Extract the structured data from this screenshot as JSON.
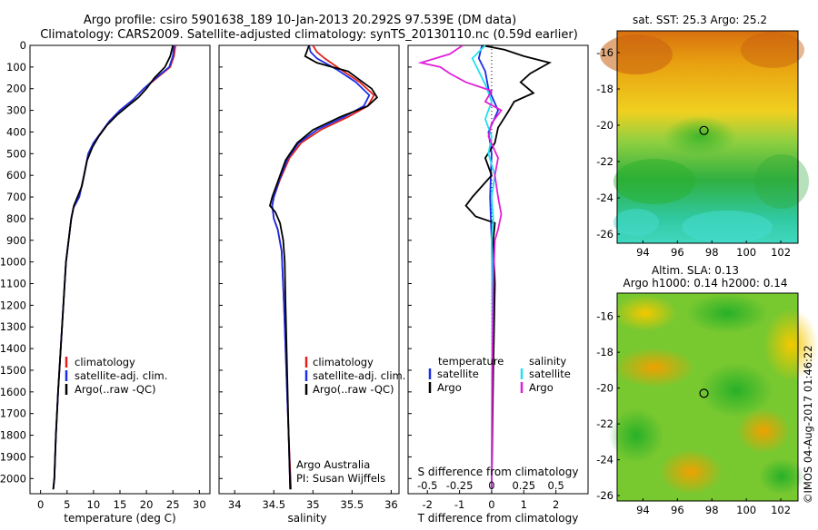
{
  "header": {
    "line1": "Argo profile: csiro 5901638_189 10-Jan-2013 20.292S 97.539E (DM data)",
    "line2": "Climatology: CARS2009. Satellite-adjusted climatology: synTS_20130110.nc (0.59d earlier)"
  },
  "side_stamp": "©IMOS 04-Aug-2017 01:46:22",
  "colors": {
    "climatology": "#e0201b",
    "satellite": "#1a2ee6",
    "argo": "#000000",
    "sat_salinity": "#22e0f0",
    "argo_salinity": "#e020d8"
  },
  "chart_data": [
    {
      "type": "line",
      "name": "temperature",
      "xlabel": "temperature (deg C)",
      "xlim": [
        -2,
        32
      ],
      "xticks": [
        0,
        5,
        10,
        15,
        20,
        25,
        30
      ],
      "ylim": [
        2070,
        0
      ],
      "yticks": [
        0,
        100,
        200,
        300,
        400,
        500,
        600,
        700,
        800,
        900,
        1000,
        1100,
        1200,
        1300,
        1400,
        1500,
        1600,
        1700,
        1800,
        1900,
        2000
      ],
      "legend": [
        "climatology",
        "satellite-adj. clim.",
        "Argo(..raw -QC)"
      ],
      "series": [
        {
          "name": "climatology",
          "color": "#e0201b",
          "points": [
            [
              25.5,
              0
            ],
            [
              25.2,
              50
            ],
            [
              24.5,
              100
            ],
            [
              22,
              150
            ],
            [
              19.5,
              200
            ],
            [
              17.5,
              250
            ],
            [
              15,
              300
            ],
            [
              13,
              350
            ],
            [
              11.5,
              400
            ],
            [
              10,
              450
            ],
            [
              9,
              500
            ],
            [
              8.2,
              600
            ],
            [
              7.3,
              700
            ],
            [
              6.2,
              750
            ],
            [
              5.8,
              800
            ],
            [
              5.3,
              900
            ],
            [
              4.8,
              1000
            ],
            [
              4.3,
              1200
            ],
            [
              3.8,
              1400
            ],
            [
              3.3,
              1600
            ],
            [
              2.9,
              1800
            ],
            [
              2.6,
              2000
            ],
            [
              2.4,
              2050
            ]
          ]
        },
        {
          "name": "satellite-adj. clim.",
          "color": "#1a2ee6",
          "points": [
            [
              25.2,
              0
            ],
            [
              25,
              50
            ],
            [
              24.3,
              100
            ],
            [
              21.8,
              150
            ],
            [
              19.5,
              200
            ],
            [
              17.5,
              250
            ],
            [
              15,
              300
            ],
            [
              13,
              350
            ],
            [
              11.5,
              400
            ],
            [
              10,
              450
            ],
            [
              9,
              500
            ],
            [
              8.2,
              600
            ],
            [
              7.3,
              700
            ],
            [
              6.2,
              750
            ],
            [
              5.8,
              800
            ],
            [
              5.3,
              900
            ],
            [
              4.8,
              1000
            ],
            [
              4.3,
              1200
            ],
            [
              3.8,
              1400
            ],
            [
              3.3,
              1600
            ],
            [
              2.9,
              1800
            ],
            [
              2.6,
              2000
            ],
            [
              2.4,
              2050
            ]
          ]
        },
        {
          "name": "Argo(..raw -QC)",
          "color": "#000000",
          "points": [
            [
              25,
              0
            ],
            [
              24.5,
              50
            ],
            [
              23.5,
              100
            ],
            [
              21.5,
              150
            ],
            [
              20,
              200
            ],
            [
              18.5,
              240
            ],
            [
              16.5,
              280
            ],
            [
              14.5,
              320
            ],
            [
              12.5,
              370
            ],
            [
              11,
              420
            ],
            [
              9.8,
              470
            ],
            [
              8.8,
              530
            ],
            [
              7.8,
              650
            ],
            [
              6.3,
              740
            ],
            [
              5.8,
              800
            ],
            [
              5.3,
              900
            ],
            [
              4.8,
              1000
            ],
            [
              4.3,
              1200
            ],
            [
              3.8,
              1400
            ],
            [
              3.3,
              1600
            ],
            [
              2.9,
              1800
            ],
            [
              2.6,
              2000
            ],
            [
              2.4,
              2050
            ]
          ]
        }
      ]
    },
    {
      "type": "line",
      "name": "salinity",
      "xlabel": "salinity",
      "xlim": [
        33.8,
        36.1
      ],
      "xticks": [
        34,
        34.5,
        35,
        35.5,
        36
      ],
      "ylim": [
        2070,
        0
      ],
      "legend": [
        "climatology",
        "satellite-adj. clim.",
        "Argo(..raw -QC)"
      ],
      "annotation": [
        "Argo Australia",
        "PI: Susan Wijffels"
      ],
      "series": [
        {
          "name": "climatology",
          "color": "#e0201b",
          "points": [
            [
              35,
              0
            ],
            [
              35.05,
              30
            ],
            [
              35.15,
              60
            ],
            [
              35.35,
              110
            ],
            [
              35.6,
              170
            ],
            [
              35.78,
              230
            ],
            [
              35.7,
              280
            ],
            [
              35.45,
              330
            ],
            [
              35.1,
              390
            ],
            [
              34.85,
              450
            ],
            [
              34.7,
              520
            ],
            [
              34.58,
              620
            ],
            [
              34.5,
              700
            ],
            [
              34.48,
              740
            ],
            [
              34.5,
              800
            ],
            [
              34.55,
              850
            ],
            [
              34.6,
              950
            ],
            [
              34.63,
              1200
            ],
            [
              34.66,
              1500
            ],
            [
              34.69,
              1800
            ],
            [
              34.72,
              2050
            ]
          ]
        },
        {
          "name": "satellite-adj. clim.",
          "color": "#1a2ee6",
          "points": [
            [
              34.95,
              0
            ],
            [
              34.97,
              30
            ],
            [
              35.05,
              60
            ],
            [
              35.3,
              110
            ],
            [
              35.55,
              170
            ],
            [
              35.72,
              230
            ],
            [
              35.65,
              280
            ],
            [
              35.4,
              330
            ],
            [
              35.05,
              390
            ],
            [
              34.82,
              450
            ],
            [
              34.68,
              520
            ],
            [
              34.57,
              620
            ],
            [
              34.5,
              700
            ],
            [
              34.48,
              740
            ],
            [
              34.5,
              800
            ],
            [
              34.55,
              850
            ],
            [
              34.6,
              950
            ],
            [
              34.63,
              1200
            ],
            [
              34.66,
              1500
            ],
            [
              34.69,
              1800
            ],
            [
              34.71,
              2050
            ]
          ]
        },
        {
          "name": "Argo(..raw -QC)",
          "color": "#000000",
          "points": [
            [
              34.95,
              0
            ],
            [
              34.9,
              50
            ],
            [
              35.05,
              80
            ],
            [
              35.2,
              95
            ],
            [
              35.45,
              120
            ],
            [
              35.6,
              160
            ],
            [
              35.75,
              200
            ],
            [
              35.82,
              240
            ],
            [
              35.7,
              280
            ],
            [
              35.35,
              330
            ],
            [
              35.0,
              390
            ],
            [
              34.8,
              450
            ],
            [
              34.65,
              530
            ],
            [
              34.55,
              630
            ],
            [
              34.48,
              700
            ],
            [
              34.45,
              740
            ],
            [
              34.52,
              770
            ],
            [
              34.58,
              820
            ],
            [
              34.62,
              900
            ],
            [
              34.64,
              1000
            ],
            [
              34.65,
              1200
            ],
            [
              34.67,
              1500
            ],
            [
              34.69,
              1800
            ],
            [
              34.71,
              2050
            ]
          ]
        }
      ]
    },
    {
      "type": "line",
      "name": "difference",
      "xlabel_top": "S difference from climatology",
      "xlabel": "T difference from climatology",
      "xlim": [
        -2.6,
        3
      ],
      "xticks_bottom": [
        -2,
        -1,
        0,
        1,
        2
      ],
      "xticks_top": [
        "-0.5",
        "-0.25",
        "0",
        "0.25",
        "0.5"
      ],
      "xticks_top_pos": [
        -2,
        -1,
        0,
        1,
        2
      ],
      "ylim": [
        2070,
        0
      ],
      "legend_temperature": {
        "title": "temperature",
        "items": [
          "satellite",
          "Argo"
        ]
      },
      "legend_salinity": {
        "title": "salinity",
        "items": [
          "satellite",
          "Argo"
        ]
      },
      "series": [
        {
          "name": "T satellite",
          "color": "#1a2ee6",
          "points": [
            [
              -0.3,
              0
            ],
            [
              -0.4,
              60
            ],
            [
              -0.2,
              120
            ],
            [
              -0.1,
              200
            ],
            [
              0.2,
              300
            ],
            [
              -0.1,
              400
            ],
            [
              0,
              500
            ],
            [
              -0.05,
              700
            ],
            [
              0,
              900
            ],
            [
              0.05,
              1200
            ],
            [
              0,
              2050
            ]
          ]
        },
        {
          "name": "T Argo",
          "color": "#000000",
          "points": [
            [
              -0.3,
              0
            ],
            [
              0.4,
              20
            ],
            [
              1,
              50
            ],
            [
              1.8,
              80
            ],
            [
              1.2,
              130
            ],
            [
              0.9,
              170
            ],
            [
              1.3,
              220
            ],
            [
              0.7,
              260
            ],
            [
              0.5,
              310
            ],
            [
              0.2,
              380
            ],
            [
              0.1,
              450
            ],
            [
              -0.2,
              520
            ],
            [
              0,
              600
            ],
            [
              -0.3,
              650
            ],
            [
              -0.6,
              700
            ],
            [
              -0.8,
              740
            ],
            [
              -0.5,
              790
            ],
            [
              0.1,
              820
            ],
            [
              0.05,
              900
            ],
            [
              0.1,
              1100
            ],
            [
              0.05,
              1500
            ],
            [
              0,
              2050
            ]
          ]
        },
        {
          "name": "S satellite",
          "color": "#22e0f0",
          "points": [
            [
              -0.2,
              0
            ],
            [
              -0.6,
              60
            ],
            [
              -0.4,
              120
            ],
            [
              -0.2,
              180
            ],
            [
              0,
              260
            ],
            [
              -0.2,
              340
            ],
            [
              0,
              420
            ],
            [
              -0.1,
              500
            ],
            [
              0.1,
              600
            ],
            [
              0,
              700
            ],
            [
              0.05,
              800
            ],
            [
              0,
              900
            ],
            [
              0.02,
              1200
            ],
            [
              0,
              2050
            ]
          ]
        },
        {
          "name": "S Argo",
          "color": "#e020d8",
          "points": [
            [
              -0.9,
              0
            ],
            [
              -1.3,
              40
            ],
            [
              -2.2,
              80
            ],
            [
              -1.6,
              100
            ],
            [
              -1.3,
              130
            ],
            [
              -0.8,
              170
            ],
            [
              0,
              210
            ],
            [
              -0.2,
              260
            ],
            [
              0.3,
              300
            ],
            [
              0,
              360
            ],
            [
              -0.1,
              420
            ],
            [
              0.2,
              520
            ],
            [
              0.1,
              600
            ],
            [
              0.2,
              700
            ],
            [
              0.3,
              780
            ],
            [
              0.2,
              850
            ],
            [
              0.1,
              900
            ],
            [
              0.05,
              1100
            ],
            [
              0.02,
              1500
            ],
            [
              0,
              2050
            ]
          ]
        }
      ]
    },
    {
      "type": "heatmap",
      "name": "sst-map",
      "title": "sat. SST: 25.3 Argo: 25.2",
      "xlim": [
        92.5,
        103
      ],
      "ylim": [
        -26.5,
        -14.8
      ],
      "xticks": [
        94,
        96,
        98,
        100,
        102
      ],
      "yticks": [
        -16,
        -18,
        -20,
        -22,
        -24,
        -26
      ],
      "marker": [
        97.54,
        -20.29
      ]
    },
    {
      "type": "heatmap",
      "name": "sla-map",
      "title_lines": [
        "Altim. SLA: 0.13",
        "Argo h1000: 0.14 h2000: 0.14"
      ],
      "xlim": [
        92.5,
        103
      ],
      "ylim": [
        -26.3,
        -14.7
      ],
      "xticks": [
        94,
        96,
        98,
        100,
        102
      ],
      "yticks": [
        -16,
        -18,
        -20,
        -22,
        -24,
        -26
      ],
      "marker": [
        97.54,
        -20.29
      ]
    }
  ]
}
